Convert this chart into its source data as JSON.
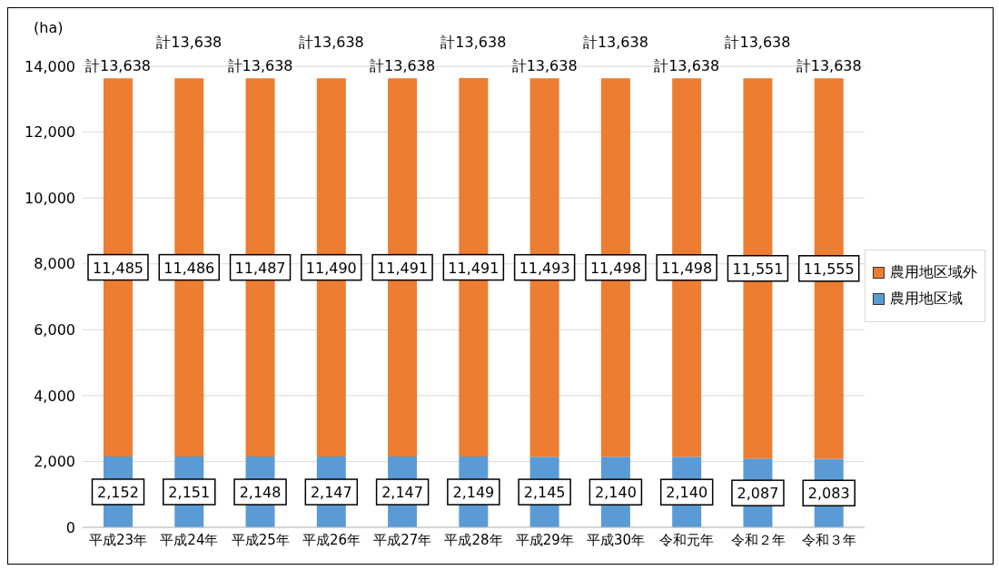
{
  "chart_data": {
    "type": "bar",
    "stacked": true,
    "ylabel": "(ha)",
    "categories": [
      "平成23年",
      "平成24年",
      "平成25年",
      "平成26年",
      "平成27年",
      "平成28年",
      "平成29年",
      "平成30年",
      "令和元年",
      "令和２年",
      "令和３年"
    ],
    "series": [
      {
        "name": "農用地区域",
        "color": "#5b9bd5",
        "values": [
          2152,
          2151,
          2148,
          2147,
          2147,
          2149,
          2145,
          2140,
          2140,
          2087,
          2083
        ],
        "value_labels": [
          "2,152",
          "2,151",
          "2,148",
          "2,147",
          "2,147",
          "2,149",
          "2,145",
          "2,140",
          "2,140",
          "2,087",
          "2,083"
        ]
      },
      {
        "name": "農用地区域外",
        "color": "#ed7d31",
        "values": [
          11485,
          11486,
          11487,
          11490,
          11491,
          11491,
          11493,
          11498,
          11498,
          11551,
          11555
        ],
        "value_labels": [
          "11,485",
          "11,486",
          "11,487",
          "11,490",
          "11,491",
          "11,491",
          "11,493",
          "11,498",
          "11,498",
          "11,551",
          "11,555"
        ]
      }
    ],
    "totals": [
      "計13,638",
      "計13,638",
      "計13,638",
      "計13,638",
      "計13,638",
      "計13,638",
      "計13,638",
      "計13,638",
      "計13,638",
      "計13,638",
      "計13,638"
    ],
    "ylim": [
      0,
      14000
    ],
    "yticks": [
      0,
      {
        "value": 2000,
        "label": "2,000"
      },
      {
        "value": 4000,
        "label": "4,000"
      },
      {
        "value": 6000,
        "label": "6,000"
      },
      {
        "value": 8000,
        "label": "8,000"
      },
      {
        "value": 10000,
        "label": "10,000"
      },
      {
        "value": 12000,
        "label": "12,000"
      },
      {
        "value": 14000,
        "label": "14,000"
      }
    ],
    "grid": "y",
    "legend": "right"
  }
}
